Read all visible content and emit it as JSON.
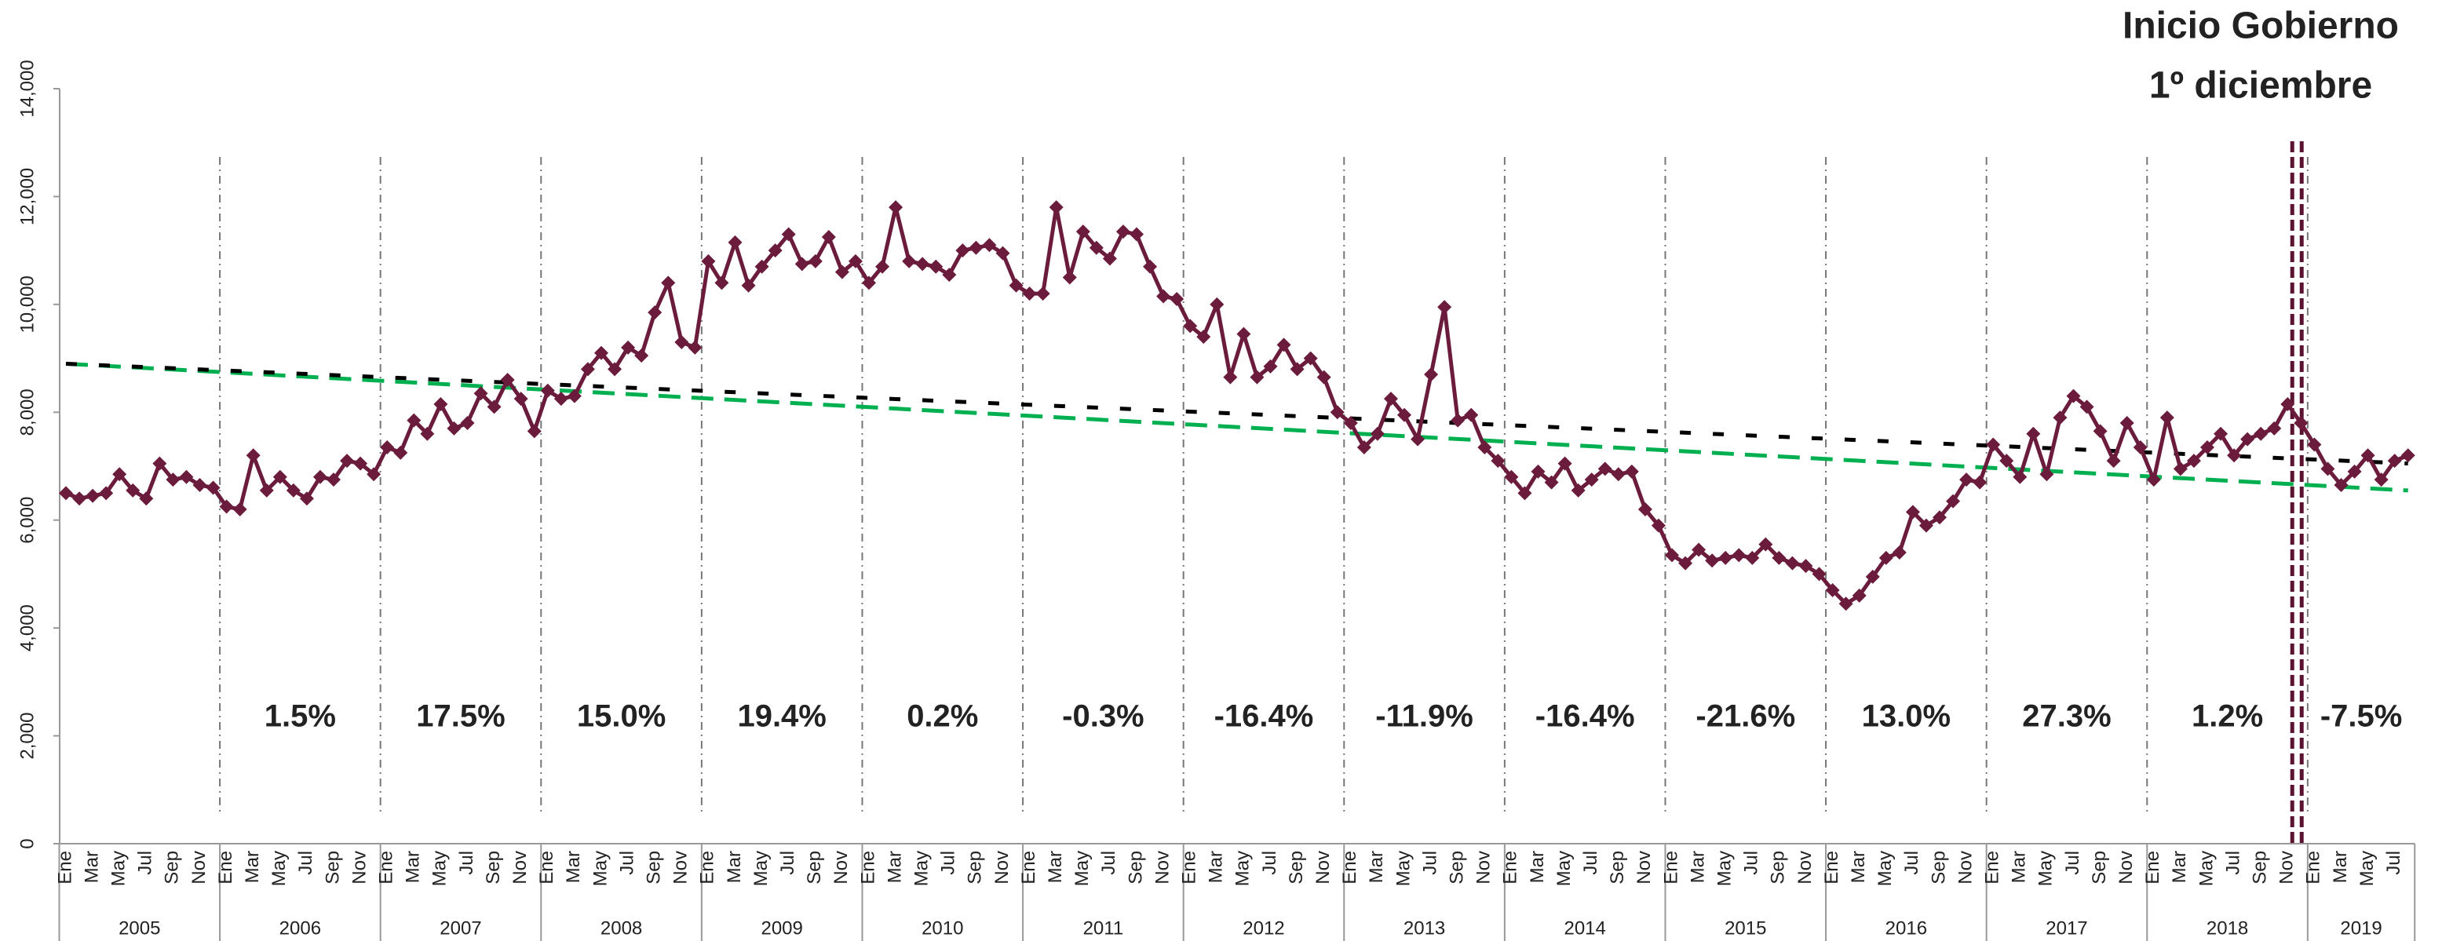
{
  "chart_data": {
    "type": "line",
    "title": [
      "Inicio Gobierno",
      "1º diciembre"
    ],
    "color": "#6b1b3c",
    "categories": [
      "Ene",
      null,
      "Mar",
      null,
      "May",
      null,
      "Jul",
      null,
      "Sep",
      null,
      "Nov",
      null,
      "Ene",
      null,
      "Mar",
      null,
      "May",
      null,
      "Jul",
      null,
      "Sep",
      null,
      "Nov",
      null,
      "Ene",
      null,
      "Mar",
      null,
      "May",
      null,
      "Jul",
      null,
      "Sep",
      null,
      "Nov",
      null,
      "Ene",
      null,
      "Mar",
      null,
      "May",
      null,
      "Jul",
      null,
      "Sep",
      null,
      "Nov",
      null,
      "Ene",
      null,
      "Mar",
      null,
      "May",
      null,
      "Jul",
      null,
      "Sep",
      null,
      "Nov",
      null,
      "Ene",
      null,
      "Mar",
      null,
      "May",
      null,
      "Jul",
      null,
      "Sep",
      null,
      "Nov",
      null,
      "Ene",
      null,
      "Mar",
      null,
      "May",
      null,
      "Jul",
      null,
      "Sep",
      null,
      "Nov",
      null,
      "Ene",
      null,
      "Mar",
      null,
      "May",
      null,
      "Jul",
      null,
      "Sep",
      null,
      "Nov",
      null,
      "Ene",
      null,
      "Mar",
      null,
      "May",
      null,
      "Jul",
      null,
      "Sep",
      null,
      "Nov",
      null,
      "Ene",
      null,
      "Mar",
      null,
      "May",
      null,
      "Jul",
      null,
      "Sep",
      null,
      "Nov",
      null,
      "Ene",
      null,
      "Mar",
      null,
      "May",
      null,
      "Jul",
      null,
      "Sep",
      null,
      "Nov",
      null,
      "Ene",
      null,
      "Mar",
      null,
      "May",
      null,
      "Jul",
      null,
      "Sep",
      null,
      "Nov",
      null,
      "Ene",
      null,
      "Mar",
      null,
      "May",
      null,
      "Jul",
      null,
      "Sep",
      null,
      "Nov",
      null,
      "Ene",
      null,
      "Mar",
      null,
      "May",
      null,
      "Jul",
      null,
      "Sep",
      null,
      "Nov",
      null,
      "Ene",
      null,
      "Mar",
      null,
      "May",
      null,
      "Jul",
      null
    ],
    "years": [
      "2005",
      "2006",
      "2007",
      "2008",
      "2009",
      "2010",
      "2011",
      "2012",
      "2013",
      "2014",
      "2015",
      "2016",
      "2017",
      "2018",
      "2019"
    ],
    "values": [
      6500,
      6400,
      6450,
      6500,
      6850,
      6550,
      6400,
      7050,
      6750,
      6800,
      6650,
      6600,
      6250,
      6200,
      7200,
      6550,
      6800,
      6550,
      6400,
      6800,
      6750,
      7100,
      7050,
      6850,
      7350,
      7250,
      7850,
      7600,
      8150,
      7700,
      7800,
      8350,
      8100,
      8600,
      8250,
      7650,
      8400,
      8250,
      8300,
      8800,
      9100,
      8800,
      9200,
      9050,
      9850,
      10400,
      9300,
      9200,
      10800,
      10400,
      11150,
      10350,
      10700,
      11000,
      11300,
      10750,
      10800,
      11250,
      10600,
      10800,
      10400,
      10700,
      11800,
      10800,
      10750,
      10700,
      10550,
      11000,
      11050,
      11100,
      10950,
      10350,
      10200,
      10200,
      11800,
      10500,
      11350,
      11050,
      10850,
      11350,
      11300,
      10700,
      10150,
      10100,
      9600,
      9400,
      10000,
      8650,
      9450,
      8650,
      8850,
      9250,
      8800,
      9000,
      8650,
      8000,
      7800,
      7350,
      7600,
      8250,
      7950,
      7500,
      8700,
      9950,
      7850,
      7950,
      7350,
      7100,
      6800,
      6500,
      6900,
      6700,
      7050,
      6550,
      6750,
      6950,
      6850,
      6900,
      6200,
      5900,
      5350,
      5200,
      5450,
      5250,
      5300,
      5350,
      5300,
      5550,
      5300,
      5200,
      5150,
      5000,
      4700,
      4450,
      4600,
      4950,
      5300,
      5400,
      6150,
      5900,
      6050,
      6350,
      6750,
      6700,
      7400,
      7100,
      6800,
      7600,
      6850,
      7900,
      8300,
      8100,
      7650,
      7100,
      7800,
      7350,
      6750,
      7900,
      6950,
      7100,
      7350,
      7600,
      7200,
      7500,
      7600,
      7700,
      8150,
      7800,
      7400,
      6950,
      6650,
      6900,
      7200,
      6750,
      7100,
      7200
    ],
    "trend_lines": [
      {
        "color": "#00b050",
        "values": [
          8900,
          6550
        ]
      },
      {
        "color": "#000000",
        "values": [
          8900,
          7050
        ]
      }
    ],
    "annotations": [
      "1.5%",
      "17.5%",
      "15.0%",
      "19.4%",
      "0.2%",
      "-0.3%",
      "-16.4%",
      "-11.9%",
      "-16.4%",
      "-21.6%",
      "13.0%",
      "27.3%",
      "1.2%",
      "-7.5%"
    ],
    "ylim": [
      0,
      14000
    ],
    "yticks": [
      0,
      {
        "value": 2000,
        "label": "2,000"
      },
      {
        "value": 4000,
        "label": "4,000"
      },
      {
        "value": 6000,
        "label": "6,000"
      },
      {
        "value": 8000,
        "label": "8,000"
      },
      {
        "value": 10000,
        "label": "10,000"
      },
      {
        "value": 12000,
        "label": "12,000"
      },
      {
        "value": 14000,
        "label": "14,000"
      }
    ]
  }
}
